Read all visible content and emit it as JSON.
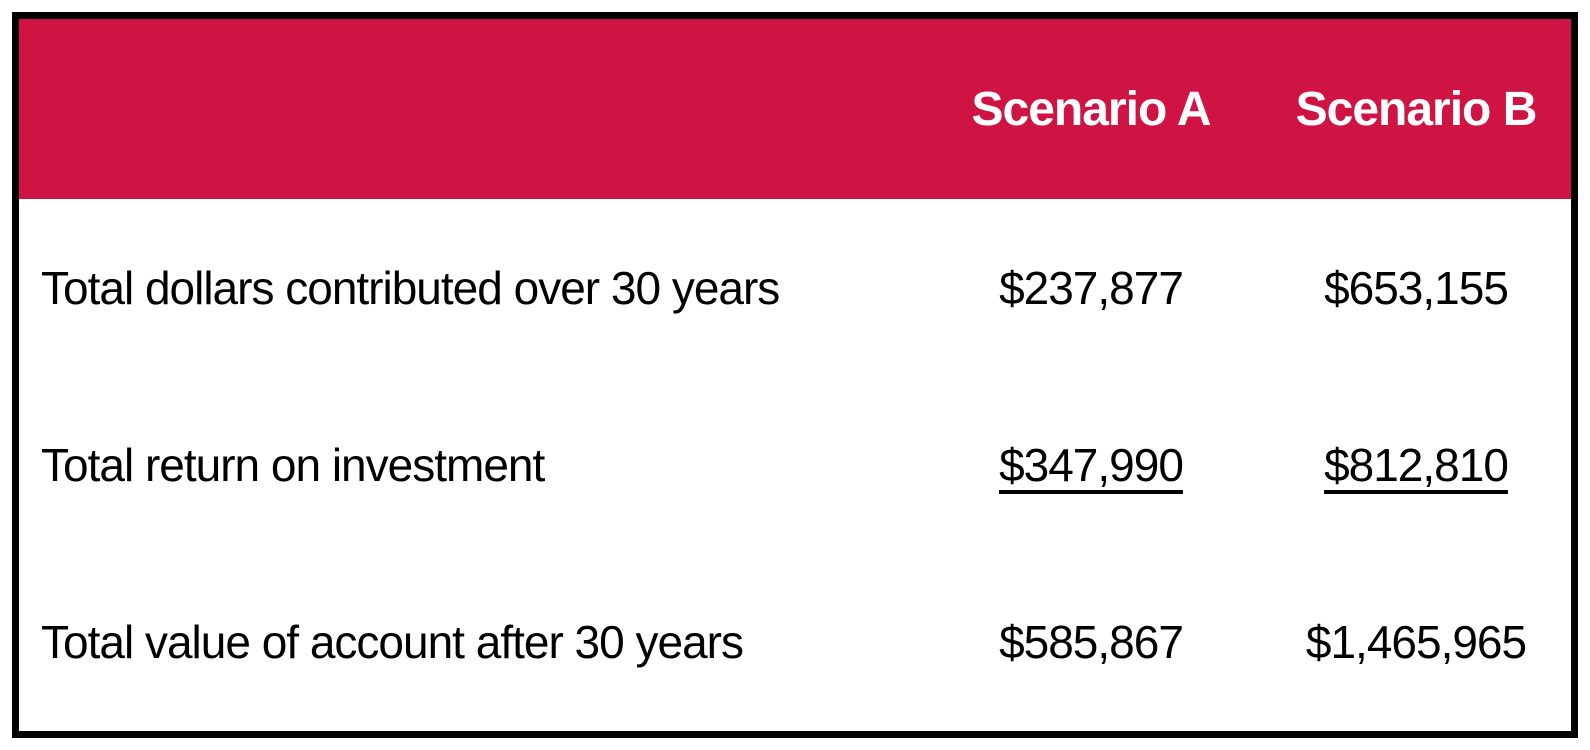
{
  "colors": {
    "header_bg": "#CF1342",
    "header_text": "#FFFFFF",
    "body_text": "#000000",
    "border": "#000000"
  },
  "table": {
    "header": {
      "scenario_a": "Scenario A",
      "scenario_b": "Scenario B"
    },
    "rows": [
      {
        "label": "Total dollars contributed over 30 years",
        "scenario_a": "$237,877",
        "scenario_b": "$653,155",
        "underlined": false
      },
      {
        "label": "Total return on investment",
        "scenario_a": "$347,990",
        "scenario_b": "$812,810",
        "underlined": true
      },
      {
        "label": "Total value of account after 30 years",
        "scenario_a": "$585,867",
        "scenario_b": "$1,465,965",
        "underlined": false
      }
    ]
  }
}
